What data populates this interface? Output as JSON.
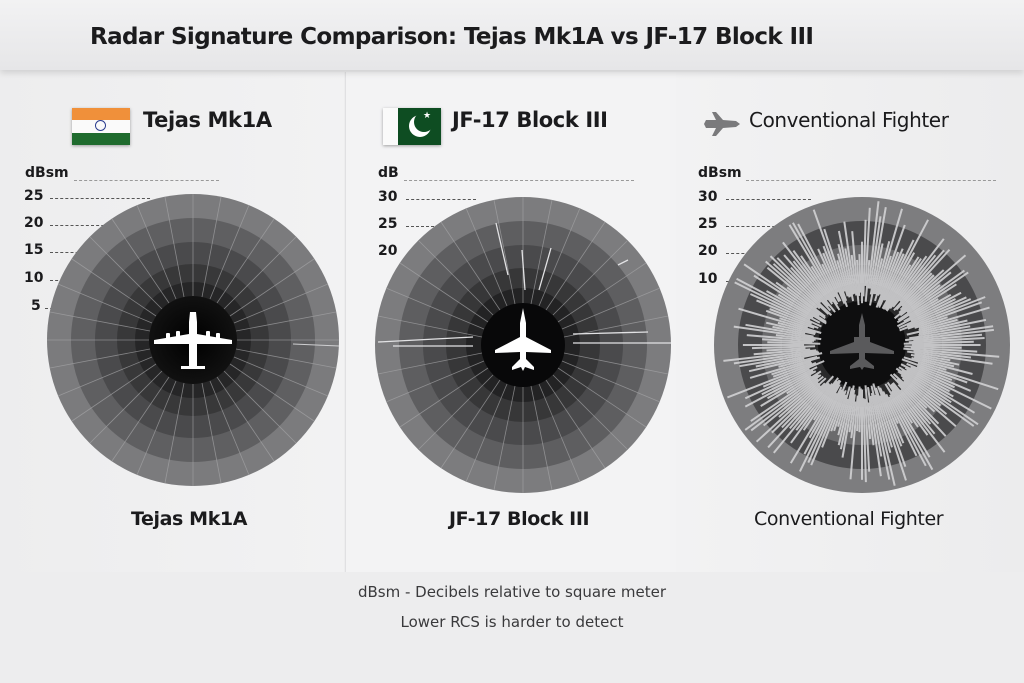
{
  "title": "Radar Signature Comparison: Tejas Mk1A vs JF-17 Block III",
  "panels": [
    {
      "name": "Tejas Mk1A",
      "icon": "india-flag-icon",
      "unit": "dBsm",
      "ticks": [
        "25",
        "20",
        "15",
        "10",
        "5"
      ],
      "label": "Tejas Mk1A"
    },
    {
      "name": "JF-17 Block III",
      "icon": "pakistan-flag-icon",
      "unit": "dB",
      "ticks": [
        "30",
        "25",
        "20"
      ],
      "label": "JF-17 Block III"
    },
    {
      "name": "Conventional Fighter",
      "icon": "fighter-jet-icon",
      "unit": "dBsm",
      "ticks": [
        "30",
        "25",
        "20",
        "10"
      ],
      "label": "Conventional Fighter"
    }
  ],
  "footer": {
    "line1": "dBsm - Decibels relative to square meter",
    "line2": "Lower RCS is harder to detect"
  },
  "colors": {
    "india_saffron": "#f0903a",
    "india_green": "#1f6b2e",
    "pakistan_green": "#0e4d22",
    "ring_outer": "#7a7a7c",
    "ring_inner": "#101011",
    "spike": "#d8d8da"
  },
  "chart_data": [
    {
      "type": "polar-radar-signature",
      "title": "Tejas Mk1A",
      "unit": "dBsm",
      "radial_ticks": [
        5,
        10,
        15,
        20,
        25
      ],
      "relative_spike_intensity": "very low",
      "notes": "Mostly uniform rings, minimal spikes"
    },
    {
      "type": "polar-radar-signature",
      "title": "JF-17 Block III",
      "unit": "dB",
      "radial_ticks": [
        20,
        25,
        30
      ],
      "relative_spike_intensity": "low",
      "notes": "Few spikes, mainly broadside (left/right) and a few forward"
    },
    {
      "type": "polar-radar-signature",
      "title": "Conventional Fighter",
      "unit": "dBsm",
      "radial_ticks": [
        10,
        20,
        25,
        30
      ],
      "relative_spike_intensity": "high",
      "notes": "Dense spikes in all directions"
    }
  ]
}
